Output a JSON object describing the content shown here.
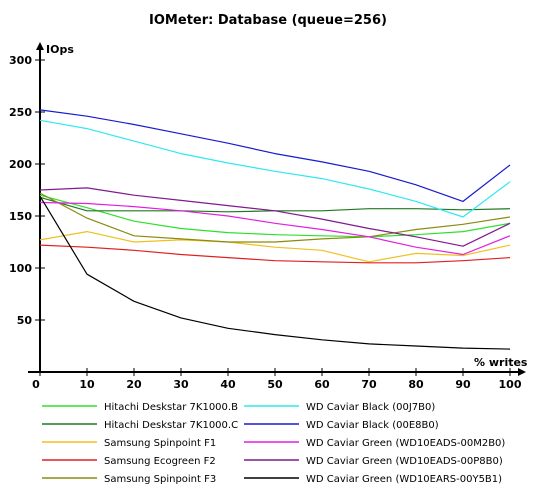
{
  "chart_data": {
    "type": "line",
    "title": "IOMeter: Database (queue=256)",
    "ylabel": "IOps",
    "xlabel": "% writes",
    "xlim": [
      0,
      100
    ],
    "ylim": [
      0,
      300
    ],
    "x": [
      0,
      10,
      20,
      30,
      40,
      50,
      60,
      70,
      80,
      90,
      100
    ],
    "x_ticks": [
      "0",
      "10",
      "20",
      "30",
      "40",
      "50",
      "60",
      "70",
      "80",
      "90",
      "100"
    ],
    "y_ticks": [
      "50",
      "100",
      "150",
      "200",
      "250",
      "300"
    ],
    "y_tick_values": [
      50,
      100,
      150,
      200,
      250,
      300
    ],
    "grid": false,
    "legend_position": "bottom",
    "series": [
      {
        "name": "Hitachi Deskstar 7K1000.B",
        "color": "#2ee02e",
        "values": [
          170,
          158,
          145,
          138,
          134,
          132,
          131,
          130,
          132,
          135,
          143
        ]
      },
      {
        "name": "Hitachi Deskstar 7K1000.C",
        "color": "#1f7a1f",
        "values": [
          168,
          155,
          155,
          155,
          154,
          155,
          155,
          157,
          157,
          156,
          157
        ]
      },
      {
        "name": "Samsung Spinpoint F1",
        "color": "#f0c020",
        "values": [
          127,
          135,
          125,
          127,
          125,
          120,
          117,
          106,
          114,
          112,
          122
        ]
      },
      {
        "name": "Samsung Ecogreen F2",
        "color": "#e02020",
        "values": [
          122,
          120,
          117,
          113,
          110,
          107,
          106,
          105,
          105,
          107,
          110
        ]
      },
      {
        "name": "Samsung Spinpoint F3",
        "color": "#8a8a10",
        "values": [
          172,
          148,
          131,
          128,
          125,
          125,
          128,
          130,
          137,
          142,
          149
        ]
      },
      {
        "name": "WD Caviar Black (00J7B0)",
        "color": "#30e8f0",
        "values": [
          242,
          234,
          222,
          210,
          201,
          193,
          186,
          176,
          164,
          149,
          183
        ]
      },
      {
        "name": "WD Caviar Black (00E8B0)",
        "color": "#1a1ad0",
        "values": [
          252,
          246,
          238,
          229,
          220,
          210,
          202,
          193,
          180,
          164,
          199
        ]
      },
      {
        "name": "WD Caviar Green (WD10EADS-00M2B0)",
        "color": "#e020e0",
        "values": [
          163,
          162,
          159,
          155,
          150,
          143,
          137,
          130,
          120,
          113,
          131
        ]
      },
      {
        "name": "WD Caviar Green (WD10EADS-00P8B0)",
        "color": "#801a90",
        "values": [
          175,
          177,
          170,
          165,
          160,
          155,
          147,
          138,
          130,
          121,
          143
        ]
      },
      {
        "name": "WD Caviar Green (WD10EARS-00Y5B1)",
        "color": "#000000",
        "values": [
          169,
          94,
          68,
          52,
          42,
          36,
          31,
          27,
          25,
          23,
          22
        ]
      }
    ]
  }
}
